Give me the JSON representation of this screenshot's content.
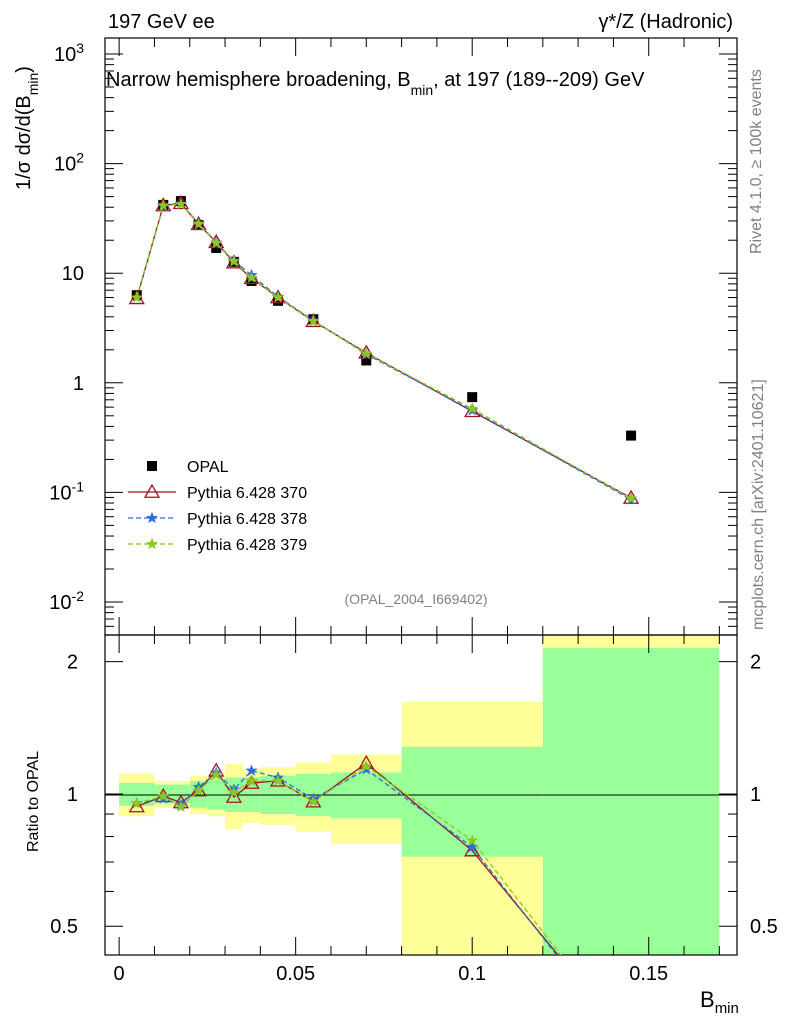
{
  "header": {
    "left": "197 GeV ee",
    "right": "γ*/Z (Hadronic)"
  },
  "side_text": {
    "rivet": "Rivet 4.1.0, ≥ 100k events",
    "mcplots": "mcplots.cern.ch [arXiv:2401.10621]"
  },
  "chart_data": {
    "type": "line",
    "title": "Narrow hemisphere broadening, B_min, at 197 (189--209) GeV",
    "title_main": "Narrow hemisphere broadening, B",
    "title_sub": "min",
    "title_tail": ", at 197 (189--209) GeV",
    "analysis_id": "(OPAL_2004_I669402)",
    "xlabel": "B",
    "xlabel_sub": "min",
    "ylabel": "1/σ  dσ/d(B",
    "ylabel_sub": "min",
    "ylabel_tail": ")",
    "ratio_ylabel": "Ratio to OPAL",
    "xlim": [
      -0.004,
      0.175
    ],
    "ylim_main": [
      0.005,
      1400
    ],
    "ylim_ratio": [
      0.43,
      2.3
    ],
    "main_ticks": [
      "10^-2",
      "10^-1",
      "1",
      "10",
      "10^2",
      "10^3"
    ],
    "x_ticks": [
      "0",
      "0.05",
      "0.1",
      "0.15"
    ],
    "ratio_ticks": [
      "0.5",
      "1",
      "2"
    ],
    "bins": [
      {
        "lo": 0.0,
        "hi": 0.01
      },
      {
        "lo": 0.01,
        "hi": 0.015
      },
      {
        "lo": 0.015,
        "hi": 0.02
      },
      {
        "lo": 0.02,
        "hi": 0.025
      },
      {
        "lo": 0.025,
        "hi": 0.03
      },
      {
        "lo": 0.03,
        "hi": 0.035
      },
      {
        "lo": 0.035,
        "hi": 0.04
      },
      {
        "lo": 0.04,
        "hi": 0.05
      },
      {
        "lo": 0.05,
        "hi": 0.06
      },
      {
        "lo": 0.06,
        "hi": 0.08
      },
      {
        "lo": 0.08,
        "hi": 0.12
      },
      {
        "lo": 0.12,
        "hi": 0.17
      }
    ],
    "x": [
      0.005,
      0.0125,
      0.0175,
      0.0225,
      0.0275,
      0.0325,
      0.0375,
      0.045,
      0.055,
      0.07,
      0.1,
      0.145
    ],
    "band_inner": [
      [
        0.94,
        1.06
      ],
      [
        0.95,
        1.05
      ],
      [
        0.95,
        1.05
      ],
      [
        0.93,
        1.07
      ],
      [
        0.92,
        1.08
      ],
      [
        0.91,
        1.09
      ],
      [
        0.91,
        1.09
      ],
      [
        0.9,
        1.1
      ],
      [
        0.89,
        1.11
      ],
      [
        0.88,
        1.12
      ],
      [
        0.72,
        1.28
      ],
      [
        0.4,
        2.15
      ]
    ],
    "band_outer": [
      [
        0.89,
        1.11
      ],
      [
        0.93,
        1.07
      ],
      [
        0.93,
        1.07
      ],
      [
        0.9,
        1.1
      ],
      [
        0.89,
        1.11
      ],
      [
        0.83,
        1.17
      ],
      [
        0.86,
        1.14
      ],
      [
        0.85,
        1.15
      ],
      [
        0.82,
        1.18
      ],
      [
        0.77,
        1.23
      ],
      [
        0.38,
        1.62
      ],
      [
        0.35,
        2.3
      ]
    ],
    "series": [
      {
        "name": "OPAL",
        "kind": "data",
        "color": "#000000",
        "values": [
          6.3,
          42.0,
          45.5,
          27.5,
          17.0,
          12.7,
          8.5,
          5.6,
          3.8,
          1.6,
          0.74,
          0.33
        ]
      },
      {
        "name": "Pythia 6.428 370",
        "kind": "mc",
        "color": "#a01020",
        "dash": "",
        "marker": "triangle",
        "values": [
          5.9,
          41.5,
          43.5,
          28.0,
          19.2,
          12.5,
          9.0,
          6.0,
          3.65,
          1.88,
          0.55,
          0.089
        ]
      },
      {
        "name": "Pythia 6.428 378",
        "kind": "mc",
        "color": "#2a6fdb",
        "dash": "5,3",
        "marker": "star",
        "values": [
          6.0,
          41.0,
          43.0,
          28.5,
          19.0,
          13.0,
          9.6,
          6.1,
          3.7,
          1.82,
          0.56,
          0.086
        ]
      },
      {
        "name": "Pythia 6.428 379",
        "kind": "mc",
        "color": "#8cc820",
        "dash": "5,3",
        "marker": "star",
        "values": [
          6.0,
          41.5,
          42.5,
          28.0,
          18.8,
          12.8,
          9.1,
          6.0,
          3.65,
          1.85,
          0.58,
          0.088
        ]
      }
    ]
  }
}
